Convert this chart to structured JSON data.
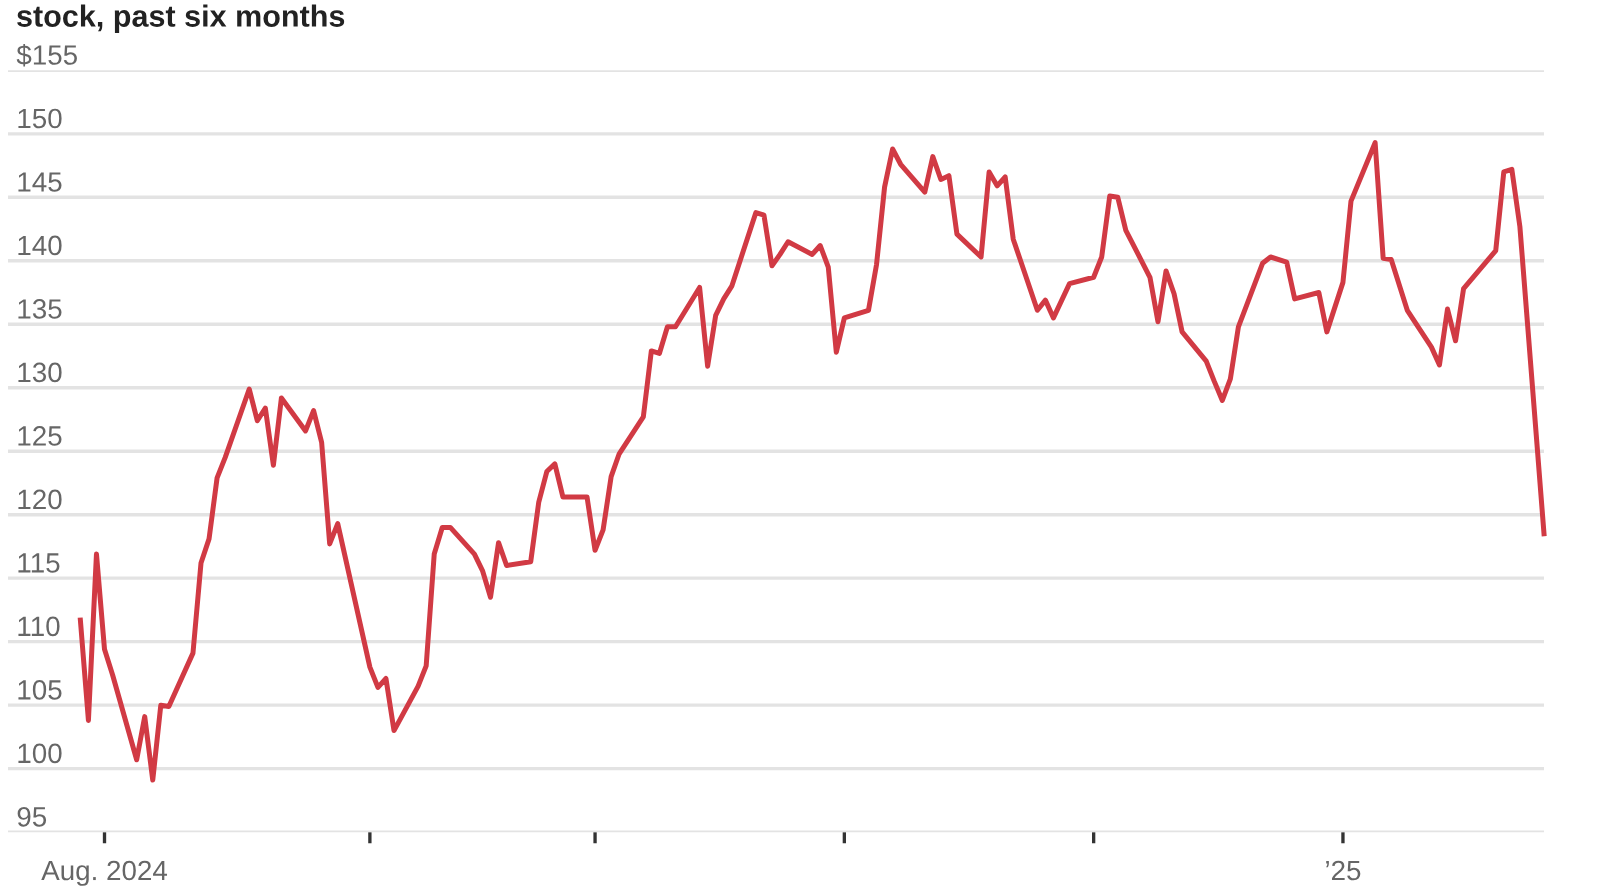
{
  "chart_data": {
    "type": "line",
    "title": "stock, past six months",
    "x": [
      "2024-07-29",
      "2024-07-30",
      "2024-07-31",
      "2024-08-01",
      "2024-08-02",
      "2024-08-05",
      "2024-08-06",
      "2024-08-07",
      "2024-08-08",
      "2024-08-09",
      "2024-08-12",
      "2024-08-13",
      "2024-08-14",
      "2024-08-15",
      "2024-08-16",
      "2024-08-19",
      "2024-08-20",
      "2024-08-21",
      "2024-08-22",
      "2024-08-23",
      "2024-08-26",
      "2024-08-27",
      "2024-08-28",
      "2024-08-29",
      "2024-08-30",
      "2024-09-03",
      "2024-09-04",
      "2024-09-05",
      "2024-09-06",
      "2024-09-09",
      "2024-09-10",
      "2024-09-11",
      "2024-09-12",
      "2024-09-13",
      "2024-09-16",
      "2024-09-17",
      "2024-09-18",
      "2024-09-19",
      "2024-09-20",
      "2024-09-23",
      "2024-09-24",
      "2024-09-25",
      "2024-09-26",
      "2024-09-27",
      "2024-09-30",
      "2024-10-01",
      "2024-10-02",
      "2024-10-03",
      "2024-10-04",
      "2024-10-07",
      "2024-10-08",
      "2024-10-09",
      "2024-10-10",
      "2024-10-11",
      "2024-10-14",
      "2024-10-15",
      "2024-10-16",
      "2024-10-17",
      "2024-10-18",
      "2024-10-21",
      "2024-10-22",
      "2024-10-23",
      "2024-10-24",
      "2024-10-25",
      "2024-10-28",
      "2024-10-29",
      "2024-10-30",
      "2024-10-31",
      "2024-11-01",
      "2024-11-04",
      "2024-11-05",
      "2024-11-06",
      "2024-11-07",
      "2024-11-08",
      "2024-11-11",
      "2024-11-12",
      "2024-11-13",
      "2024-11-14",
      "2024-11-15",
      "2024-11-18",
      "2024-11-19",
      "2024-11-20",
      "2024-11-21",
      "2024-11-22",
      "2024-11-25",
      "2024-11-26",
      "2024-11-27",
      "2024-11-29",
      "2024-12-02",
      "2024-12-03",
      "2024-12-04",
      "2024-12-05",
      "2024-12-06",
      "2024-12-09",
      "2024-12-10",
      "2024-12-11",
      "2024-12-12",
      "2024-12-13",
      "2024-12-16",
      "2024-12-17",
      "2024-12-18",
      "2024-12-19",
      "2024-12-20",
      "2024-12-23",
      "2024-12-24",
      "2024-12-26",
      "2024-12-27",
      "2024-12-30",
      "2024-12-31",
      "2025-01-02",
      "2025-01-03",
      "2025-01-06",
      "2025-01-07",
      "2025-01-08",
      "2025-01-10",
      "2025-01-13",
      "2025-01-14",
      "2025-01-15",
      "2025-01-16",
      "2025-01-17",
      "2025-01-21",
      "2025-01-22",
      "2025-01-23",
      "2025-01-24",
      "2025-01-27"
    ],
    "series": [
      {
        "color": "#d13a44",
        "values": [
          111.7,
          103.8,
          116.9,
          109.4,
          107.4,
          100.7,
          104.1,
          99.1,
          105.0,
          104.9,
          109.1,
          116.2,
          118.1,
          122.9,
          124.5,
          129.9,
          127.4,
          128.4,
          123.9,
          129.2,
          126.6,
          128.2,
          125.7,
          117.7,
          119.3,
          108.0,
          106.4,
          107.1,
          103.0,
          106.5,
          108.1,
          116.9,
          119.0,
          119.0,
          116.9,
          115.6,
          113.5,
          117.8,
          116.0,
          116.3,
          121.0,
          123.4,
          124.0,
          121.4,
          121.4,
          117.2,
          118.8,
          123.0,
          124.8,
          127.7,
          132.9,
          132.7,
          134.8,
          134.8,
          137.9,
          131.7,
          135.7,
          137.0,
          138.0,
          143.8,
          143.6,
          139.6,
          140.5,
          141.5,
          140.5,
          141.2,
          139.5,
          132.8,
          135.5,
          136.1,
          139.7,
          145.8,
          148.8,
          147.6,
          145.4,
          148.2,
          146.4,
          146.7,
          142.1,
          140.3,
          147.0,
          145.9,
          146.6,
          141.7,
          136.1,
          136.9,
          135.5,
          138.2,
          138.7,
          140.3,
          145.1,
          145.0,
          142.4,
          138.7,
          135.2,
          139.2,
          137.4,
          134.4,
          132.1,
          130.5,
          129.0,
          130.7,
          134.8,
          139.8,
          140.3,
          139.9,
          137.0,
          137.5,
          134.4,
          138.3,
          144.7,
          149.3,
          140.2,
          140.1,
          136.1,
          133.2,
          131.8,
          136.2,
          133.7,
          137.8,
          140.8,
          147.0,
          147.2,
          142.7,
          118.5
        ]
      }
    ],
    "xlim": [
      "2024-07-20",
      "2025-01-27"
    ],
    "xticks": [
      {
        "value": "2024-08-01",
        "label": "Aug. 2024"
      },
      {
        "value": "2024-09-03",
        "label": null
      },
      {
        "value": "2024-10-01",
        "label": null
      },
      {
        "value": "2024-11-01",
        "label": null
      },
      {
        "value": "2024-12-02",
        "label": null
      },
      {
        "value": "2025-01-02",
        "label": "’25"
      }
    ],
    "ylim": [
      95,
      155
    ],
    "yticks": [
      95,
      100,
      105,
      110,
      115,
      120,
      125,
      130,
      135,
      140,
      145,
      150,
      {
        "value": 155,
        "label": "$155"
      }
    ],
    "grid": "y",
    "marker": "none",
    "line_style": "solid"
  }
}
